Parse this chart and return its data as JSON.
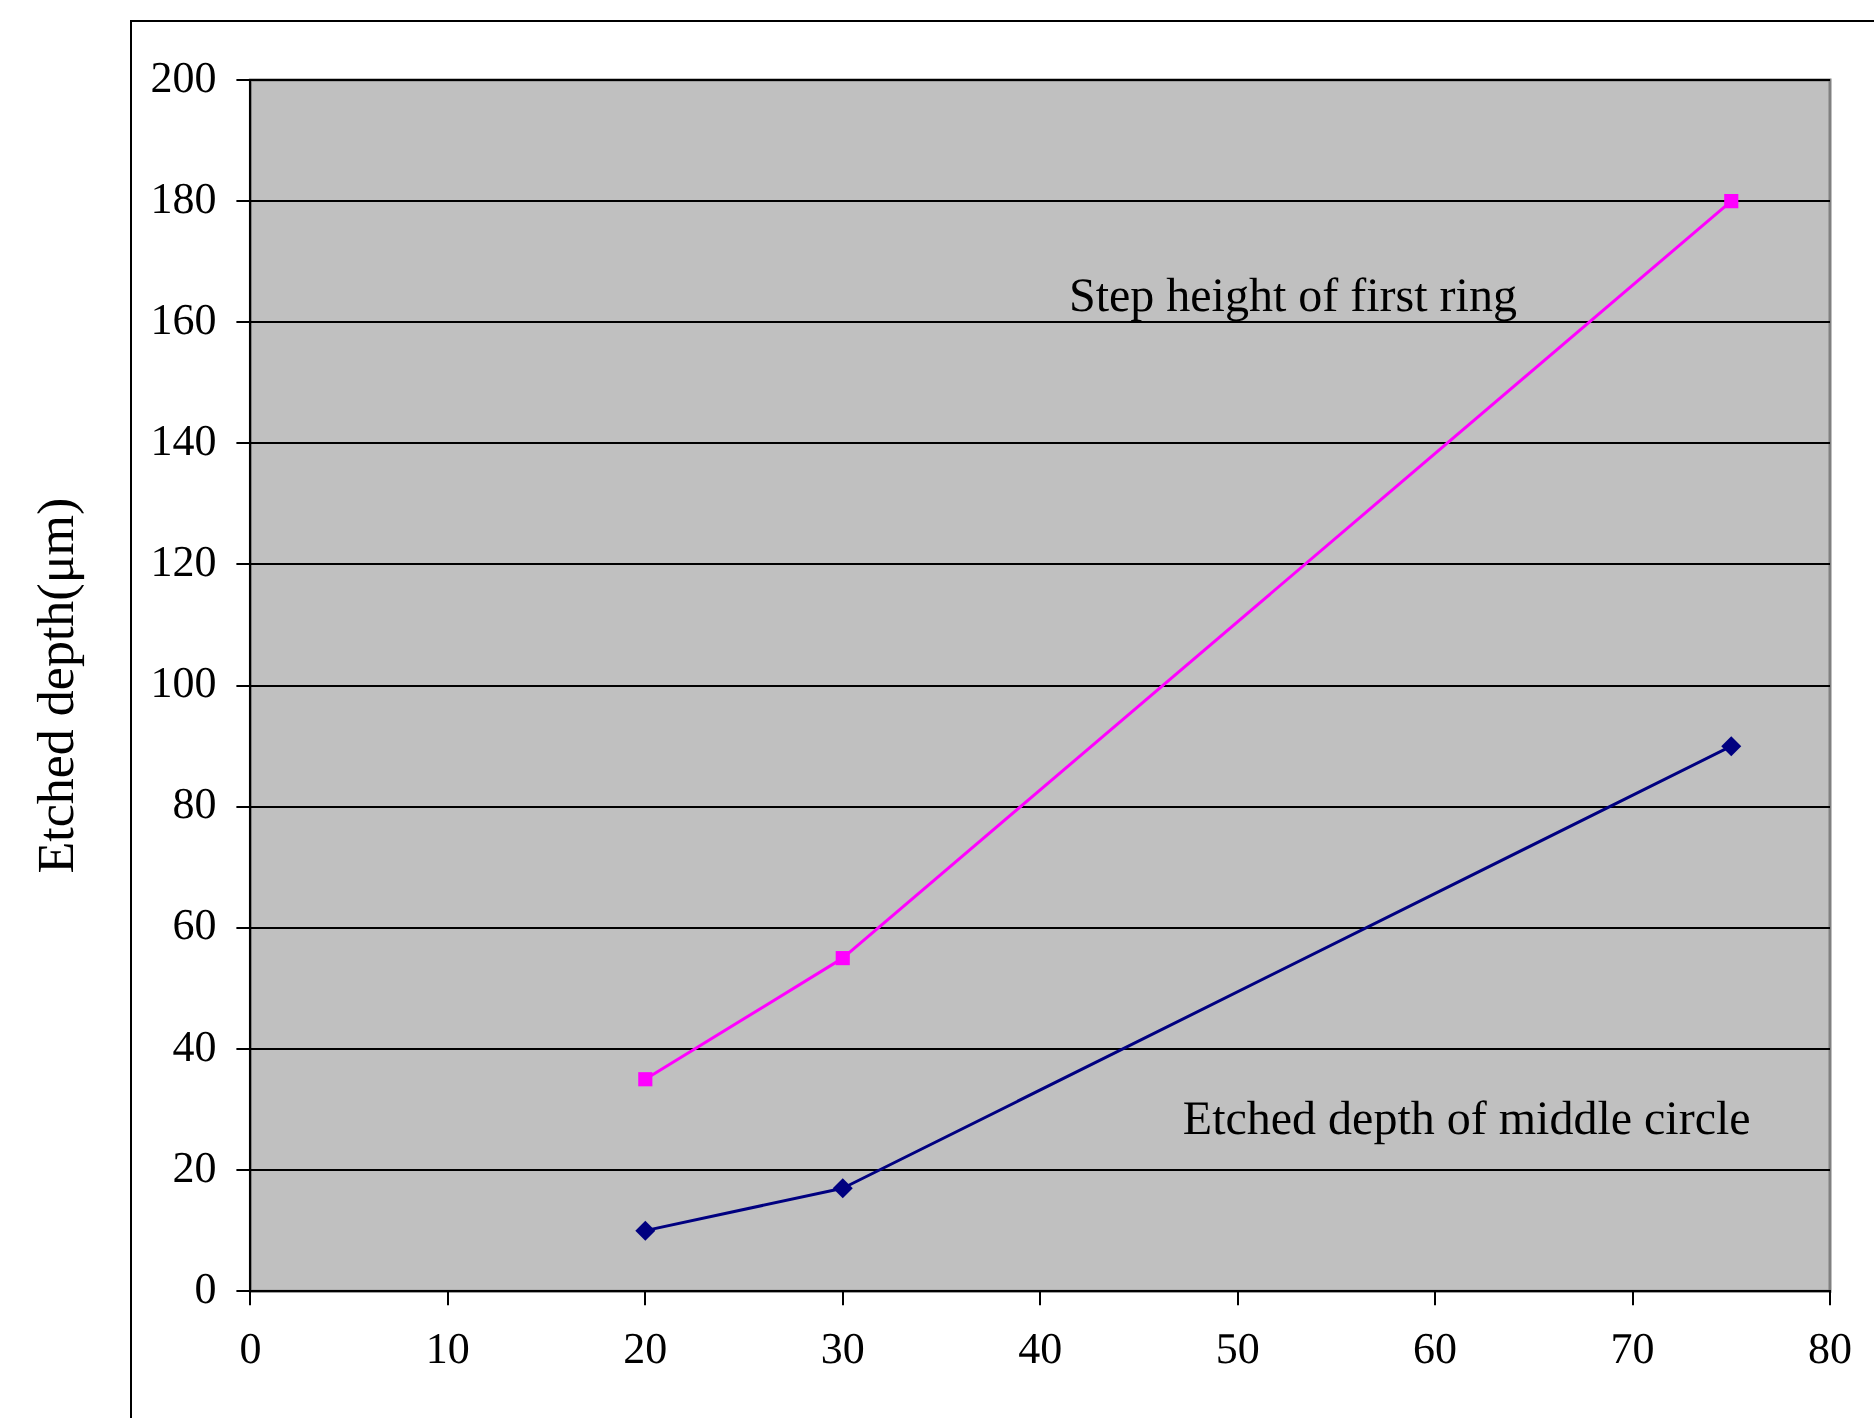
{
  "chart_data": {
    "type": "line",
    "ylabel": "Etched depth(μm)",
    "xlim": [
      0,
      80
    ],
    "xticks": [
      0,
      10,
      20,
      30,
      40,
      50,
      60,
      70,
      80
    ],
    "ylim": [
      0,
      200
    ],
    "yticks": [
      0,
      20,
      40,
      60,
      80,
      100,
      120,
      140,
      160,
      180,
      200
    ],
    "grid": "y",
    "legend": false,
    "series": [
      {
        "name": "Step height of first ring",
        "color": "#ff00ff",
        "marker": "square",
        "x": [
          20,
          30,
          75
        ],
        "values": [
          35,
          55,
          180
        ]
      },
      {
        "name": "Etched depth of middle circle",
        "color": "#000080",
        "marker": "diamond",
        "x": [
          20,
          30,
          75
        ],
        "values": [
          10,
          17,
          90
        ]
      }
    ]
  }
}
